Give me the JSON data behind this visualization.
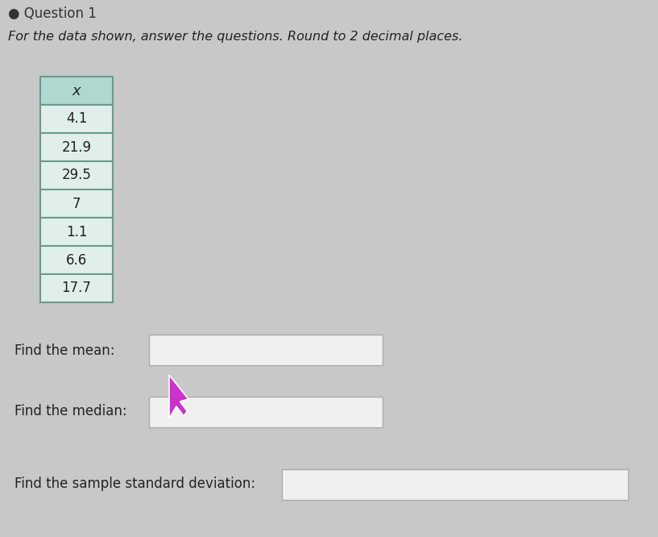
{
  "instruction": "For the data shown, answer the questions. Round to 2 decimal places.",
  "table_header": "x",
  "table_values": [
    "4.1",
    "21.9",
    "29.5",
    "7",
    "1.1",
    "6.6",
    "17.7"
  ],
  "label_mean": "Find the mean:",
  "label_median": "Find the median:",
  "label_std": "Find the sample standard deviation:",
  "bg_color": "#c8c8c8",
  "table_header_bg": "#b0d8d0",
  "table_cell_bg": "#e0eeec",
  "table_border_color": "#6a9a8a",
  "input_box_color": "#f0f0f0",
  "input_box_border": "#aaaaaa",
  "text_color": "#222222",
  "cursor_color": "#cc33cc",
  "title_text": "Question 1",
  "title_color": "#333333"
}
